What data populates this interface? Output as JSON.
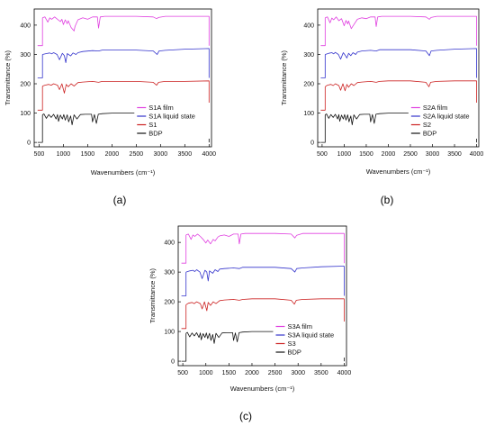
{
  "chart_data": [
    {
      "panel_label": "(a)",
      "type": "line",
      "xlabel": "Wavenumbers (cm⁻¹)",
      "ylabel": "Transmittance (%)",
      "xlim": [
        400,
        4050
      ],
      "ylim": [
        -15,
        455
      ],
      "xticks": [
        500,
        1000,
        1500,
        2000,
        2500,
        3000,
        3500,
        4000
      ],
      "yticks": [
        0,
        100,
        200,
        300,
        400
      ],
      "legend": [
        "S1A film",
        "S1A liquid state",
        "S1",
        "BDP"
      ],
      "legend_position": "bottom-right",
      "series": [
        {
          "name": "S1A film",
          "color": "#e040e0",
          "baseline": 430,
          "x": [
            570,
            620,
            680,
            720,
            760,
            820,
            880,
            940,
            970,
            1000,
            1040,
            1080,
            1100,
            1160,
            1220,
            1240,
            1300,
            1400,
            1500,
            1600,
            1700,
            1725,
            1760,
            1850,
            2000,
            2500,
            2850,
            2920,
            2960,
            3100,
            3500,
            4000
          ],
          "y": [
            425,
            428,
            410,
            425,
            420,
            428,
            420,
            412,
            420,
            402,
            418,
            405,
            415,
            392,
            380,
            395,
            418,
            425,
            420,
            428,
            428,
            390,
            428,
            430,
            430,
            430,
            428,
            422,
            426,
            430,
            430,
            430
          ]
        },
        {
          "name": "S1A liquid state",
          "color": "#3333cc",
          "baseline": 320,
          "x": [
            570,
            650,
            720,
            760,
            800,
            870,
            920,
            980,
            1020,
            1050,
            1080,
            1150,
            1200,
            1260,
            1300,
            1400,
            1600,
            1725,
            1800,
            2000,
            2500,
            2850,
            2930,
            2970,
            3100,
            3500,
            4000
          ],
          "y": [
            300,
            303,
            305,
            302,
            306,
            300,
            282,
            304,
            296,
            272,
            303,
            295,
            305,
            300,
            306,
            310,
            313,
            312,
            315,
            315,
            315,
            312,
            300,
            312,
            314,
            318,
            320
          ]
        },
        {
          "name": "S1",
          "color": "#cc2222",
          "baseline": 210,
          "x": [
            570,
            620,
            700,
            750,
            800,
            880,
            920,
            970,
            1020,
            1060,
            1100,
            1160,
            1220,
            1300,
            1400,
            1600,
            1725,
            1800,
            2000,
            2500,
            2850,
            2920,
            2960,
            3100,
            3500,
            4000
          ],
          "y": [
            192,
            195,
            198,
            195,
            200,
            195,
            180,
            200,
            168,
            198,
            190,
            200,
            192,
            204,
            206,
            208,
            205,
            208,
            208,
            208,
            205,
            195,
            205,
            208,
            208,
            210
          ]
        },
        {
          "name": "BDP",
          "color": "#111111",
          "baseline": 100,
          "x": [
            570,
            600,
            650,
            700,
            750,
            800,
            850,
            880,
            900,
            940,
            980,
            1010,
            1040,
            1080,
            1110,
            1150,
            1180,
            1220,
            1280,
            1350,
            1450,
            1580,
            1600,
            1640,
            1680,
            1720,
            1800,
            2000,
            2500,
            2900,
            2950,
            3000,
            3060,
            3100,
            3500,
            4000
          ],
          "y": [
            94,
            97,
            82,
            95,
            85,
            96,
            80,
            95,
            72,
            93,
            80,
            95,
            76,
            94,
            70,
            90,
            60,
            94,
            80,
            95,
            96,
            96,
            70,
            95,
            65,
            96,
            98,
            100,
            100,
            96,
            90,
            96,
            92,
            98,
            100,
            100
          ]
        }
      ]
    },
    {
      "panel_label": "(b)",
      "type": "line",
      "xlabel": "Wavenumbers (cm⁻¹)",
      "ylabel": "Transmittance (%)",
      "xlim": [
        400,
        4050
      ],
      "ylim": [
        -15,
        455
      ],
      "xticks": [
        500,
        1000,
        1500,
        2000,
        2500,
        3000,
        3500,
        4000
      ],
      "yticks": [
        0,
        100,
        200,
        300,
        400
      ],
      "legend": [
        "S2A film",
        "S2A liquid state",
        "S2",
        "BDP"
      ],
      "legend_position": "bottom-right",
      "series": [
        {
          "name": "S2A film",
          "color": "#e040e0",
          "baseline": 430,
          "x": [
            570,
            620,
            680,
            720,
            760,
            820,
            880,
            940,
            1000,
            1040,
            1080,
            1100,
            1160,
            1220,
            1300,
            1400,
            1500,
            1600,
            1700,
            1725,
            1760,
            1850,
            2000,
            2500,
            2850,
            2930,
            2970,
            3100,
            3500,
            4000
          ],
          "y": [
            425,
            428,
            408,
            424,
            418,
            428,
            415,
            422,
            398,
            416,
            404,
            414,
            388,
            402,
            420,
            425,
            422,
            428,
            428,
            395,
            428,
            430,
            430,
            430,
            428,
            420,
            426,
            430,
            430,
            430
          ]
        },
        {
          "name": "S2A liquid state",
          "color": "#3333cc",
          "baseline": 320,
          "x": [
            570,
            650,
            720,
            760,
            800,
            870,
            920,
            980,
            1020,
            1060,
            1100,
            1150,
            1200,
            1260,
            1300,
            1400,
            1600,
            1725,
            1800,
            2000,
            2500,
            2850,
            2930,
            2970,
            3100,
            3500,
            4000
          ],
          "y": [
            300,
            304,
            306,
            302,
            307,
            300,
            284,
            306,
            298,
            288,
            304,
            296,
            306,
            300,
            308,
            312,
            314,
            312,
            316,
            316,
            316,
            312,
            296,
            312,
            314,
            318,
            320
          ]
        },
        {
          "name": "S2",
          "color": "#cc2222",
          "baseline": 210,
          "x": [
            570,
            620,
            700,
            750,
            800,
            880,
            920,
            970,
            1020,
            1060,
            1100,
            1160,
            1220,
            1300,
            1400,
            1600,
            1725,
            1800,
            2000,
            2500,
            2850,
            2920,
            2960,
            3100,
            3500,
            4000
          ],
          "y": [
            190,
            195,
            198,
            194,
            200,
            194,
            178,
            200,
            176,
            198,
            188,
            200,
            194,
            204,
            206,
            208,
            205,
            208,
            210,
            210,
            205,
            190,
            205,
            208,
            210,
            210
          ]
        },
        {
          "name": "BDP",
          "color": "#111111",
          "baseline": 100,
          "x": [
            570,
            600,
            650,
            700,
            750,
            800,
            850,
            880,
            900,
            940,
            980,
            1010,
            1040,
            1080,
            1110,
            1150,
            1180,
            1220,
            1280,
            1350,
            1450,
            1580,
            1600,
            1640,
            1680,
            1720,
            1800,
            2000,
            2500,
            2900,
            2950,
            3000,
            3060,
            3100,
            3500,
            4000
          ],
          "y": [
            94,
            97,
            82,
            95,
            85,
            96,
            80,
            95,
            72,
            93,
            80,
            95,
            76,
            94,
            70,
            90,
            60,
            94,
            80,
            95,
            96,
            96,
            70,
            95,
            65,
            96,
            98,
            100,
            100,
            96,
            90,
            96,
            92,
            98,
            100,
            100
          ]
        }
      ]
    },
    {
      "panel_label": "(c)",
      "type": "line",
      "xlabel": "Wavenumbers (cm⁻¹)",
      "ylabel": "Transmittance (%)",
      "xlim": [
        400,
        4050
      ],
      "ylim": [
        -15,
        455
      ],
      "xticks": [
        500,
        1000,
        1500,
        2000,
        2500,
        3000,
        3500,
        4000
      ],
      "yticks": [
        0,
        100,
        200,
        300,
        400
      ],
      "legend": [
        "S3A film",
        "S3A liquid state",
        "S3",
        "BDP"
      ],
      "legend_position": "bottom-right",
      "series": [
        {
          "name": "S3A film",
          "color": "#e040e0",
          "baseline": 430,
          "x": [
            570,
            620,
            680,
            720,
            760,
            820,
            880,
            940,
            1000,
            1040,
            1100,
            1160,
            1200,
            1260,
            1300,
            1400,
            1500,
            1600,
            1700,
            1725,
            1760,
            1850,
            2000,
            2500,
            2850,
            2930,
            2970,
            3100,
            3500,
            4000
          ],
          "y": [
            425,
            428,
            410,
            425,
            420,
            428,
            420,
            410,
            398,
            408,
            395,
            410,
            405,
            418,
            422,
            425,
            420,
            428,
            428,
            395,
            428,
            430,
            430,
            430,
            428,
            415,
            424,
            430,
            430,
            430
          ]
        },
        {
          "name": "S3A liquid state",
          "color": "#3333cc",
          "baseline": 320,
          "x": [
            570,
            650,
            720,
            760,
            800,
            870,
            920,
            980,
            1020,
            1050,
            1080,
            1150,
            1200,
            1260,
            1300,
            1400,
            1600,
            1725,
            1800,
            2000,
            2500,
            2850,
            2930,
            2970,
            3100,
            3500,
            4000
          ],
          "y": [
            300,
            304,
            306,
            302,
            308,
            300,
            278,
            306,
            300,
            270,
            304,
            296,
            308,
            302,
            310,
            312,
            314,
            312,
            316,
            316,
            316,
            312,
            300,
            312,
            314,
            318,
            320
          ]
        },
        {
          "name": "S3",
          "color": "#cc2222",
          "baseline": 210,
          "x": [
            570,
            620,
            700,
            750,
            800,
            880,
            920,
            970,
            1020,
            1050,
            1100,
            1160,
            1220,
            1300,
            1400,
            1600,
            1725,
            1800,
            2000,
            2500,
            2850,
            2920,
            2960,
            3100,
            3500,
            4000
          ],
          "y": [
            190,
            195,
            198,
            194,
            200,
            194,
            176,
            200,
            170,
            198,
            188,
            200,
            194,
            204,
            206,
            208,
            205,
            208,
            210,
            210,
            205,
            192,
            205,
            208,
            210,
            210
          ]
        },
        {
          "name": "BDP",
          "color": "#111111",
          "baseline": 100,
          "x": [
            570,
            600,
            650,
            700,
            750,
            800,
            850,
            880,
            900,
            940,
            980,
            1010,
            1040,
            1080,
            1110,
            1150,
            1180,
            1220,
            1280,
            1350,
            1450,
            1580,
            1600,
            1640,
            1680,
            1720,
            1800,
            2000,
            2500,
            2900,
            2950,
            3000,
            3060,
            3100,
            3500,
            4000
          ],
          "y": [
            94,
            97,
            82,
            95,
            85,
            96,
            80,
            95,
            72,
            93,
            80,
            95,
            76,
            94,
            70,
            90,
            60,
            94,
            80,
            95,
            96,
            96,
            70,
            95,
            65,
            96,
            98,
            100,
            100,
            96,
            90,
            96,
            92,
            98,
            100,
            100
          ]
        }
      ]
    }
  ]
}
